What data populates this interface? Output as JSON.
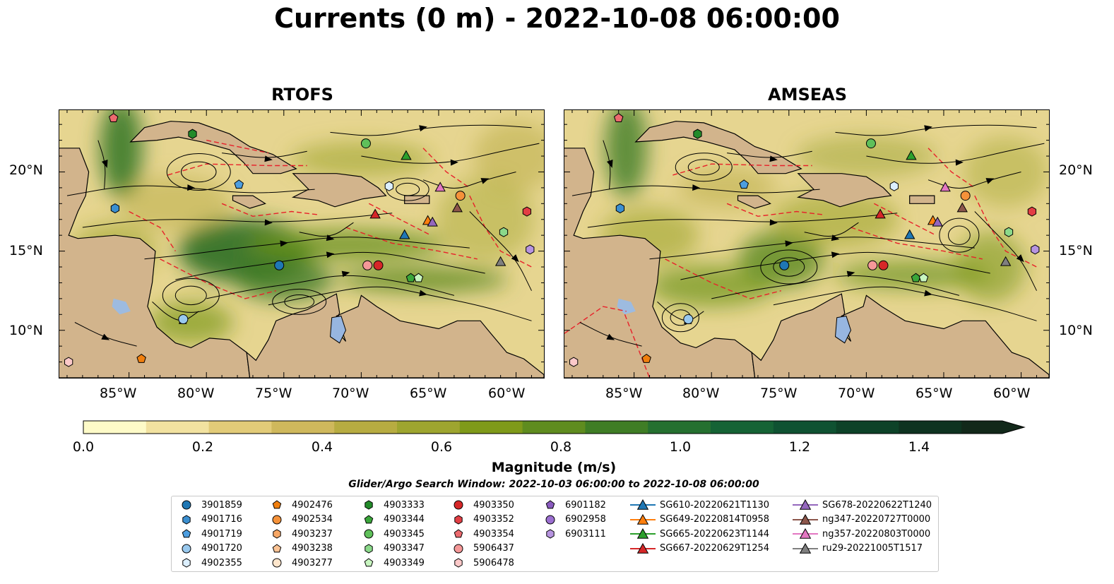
{
  "title": "Currents (0 m) - 2022-10-08 06:00:00",
  "panels": [
    {
      "title": "RTOFS"
    },
    {
      "title": "AMSEAS"
    }
  ],
  "lat_labels": [
    "20°N",
    "15°N",
    "10°N"
  ],
  "lon_labels": [
    "85°W",
    "80°W",
    "75°W",
    "70°W",
    "65°W",
    "60°W"
  ],
  "map_extent": {
    "lon_min": -89.5,
    "lon_max": -58.2,
    "lat_min": 7.0,
    "lat_max": 23.9
  },
  "colorbar": {
    "label": "Magnitude (m/s)",
    "ticks": [
      "0.0",
      "0.2",
      "0.4",
      "0.6",
      "0.8",
      "1.0",
      "1.2",
      "1.4"
    ],
    "range": [
      0.0,
      1.5
    ],
    "colors": [
      "#fefbc8",
      "#f2e2a0",
      "#e2cb78",
      "#cfb85c",
      "#b7ac41",
      "#9ea52f",
      "#7f9a1a",
      "#5f8c1f",
      "#3f7d25",
      "#257030",
      "#156335",
      "#0f5232",
      "#0d4228",
      "#0e3320",
      "#12281a"
    ]
  },
  "search_window": "Glider/Argo Search Window: 2022-10-03 06:00:00 to 2022-10-08 06:00:00",
  "legend": [
    {
      "label": "3901859",
      "marker": "circle",
      "color": "#1f77b4"
    },
    {
      "label": "4901716",
      "marker": "hexagon",
      "color": "#3b8fd0"
    },
    {
      "label": "4901719",
      "marker": "pentagon",
      "color": "#4d9ee0"
    },
    {
      "label": "4901720",
      "marker": "circle",
      "color": "#99c9ee"
    },
    {
      "label": "4902355",
      "marker": "hexagon",
      "color": "#dcefff"
    },
    {
      "label": "4902476",
      "marker": "pentagon",
      "color": "#f07f0e"
    },
    {
      "label": "4902534",
      "marker": "circle",
      "color": "#f5923a"
    },
    {
      "label": "4903237",
      "marker": "hexagon",
      "color": "#f7a765"
    },
    {
      "label": "4903238",
      "marker": "pentagon",
      "color": "#fbc394"
    },
    {
      "label": "4903277",
      "marker": "circle",
      "color": "#ffe6cc"
    },
    {
      "label": "4903333",
      "marker": "hexagon",
      "color": "#238b2a"
    },
    {
      "label": "4903344",
      "marker": "pentagon",
      "color": "#3aa63a"
    },
    {
      "label": "4903345",
      "marker": "circle",
      "color": "#5fc05a"
    },
    {
      "label": "4903347",
      "marker": "hexagon",
      "color": "#8bd98a"
    },
    {
      "label": "4903349",
      "marker": "pentagon",
      "color": "#c8f5c0"
    },
    {
      "label": "4903350",
      "marker": "circle",
      "color": "#d62728"
    },
    {
      "label": "4903352",
      "marker": "hexagon",
      "color": "#e23e44"
    },
    {
      "label": "4903354",
      "marker": "pentagon",
      "color": "#ec6a6e"
    },
    {
      "label": "5906437",
      "marker": "circle",
      "color": "#f59898"
    },
    {
      "label": "5906478",
      "marker": "hexagon",
      "color": "#fcc9c9"
    },
    {
      "label": "6901182",
      "marker": "pentagon",
      "color": "#8a5bbf"
    },
    {
      "label": "6902958",
      "marker": "circle",
      "color": "#9c6fd1"
    },
    {
      "label": "6903111",
      "marker": "hexagon",
      "color": "#b794e0"
    },
    {
      "label": "SG610-20220621T1130",
      "marker": "triangle",
      "color": "#1f77b4"
    },
    {
      "label": "SG649-20220814T0958",
      "marker": "triangle",
      "color": "#ff7f0e"
    },
    {
      "label": "SG665-20220623T1144",
      "marker": "triangle",
      "color": "#2ca02c"
    },
    {
      "label": "SG667-20220629T1254",
      "marker": "triangle",
      "color": "#d62728"
    },
    {
      "label": "SG678-20220622T1240",
      "marker": "triangle",
      "color": "#9467bd"
    },
    {
      "label": "ng347-20220727T0000",
      "marker": "triangle",
      "color": "#8c564b"
    },
    {
      "label": "ng357-20220803T0000",
      "marker": "triangle",
      "color": "#e377c2"
    },
    {
      "label": "ru29-20221005T1517",
      "marker": "triangle",
      "color": "#7f7f7f"
    }
  ],
  "map_markers": [
    {
      "label": "4903354",
      "lon": -86.0,
      "lat": 23.4
    },
    {
      "label": "4903333",
      "lon": -80.9,
      "lat": 22.4
    },
    {
      "label": "4903345",
      "lon": -69.7,
      "lat": 21.8
    },
    {
      "label": "SG665-20220623T1144",
      "lon": -67.1,
      "lat": 21.0
    },
    {
      "label": "4901719",
      "lon": -77.9,
      "lat": 19.2
    },
    {
      "label": "4902355",
      "lon": -68.2,
      "lat": 19.1
    },
    {
      "label": "ng357-20220803T0000",
      "lon": -64.9,
      "lat": 19.0
    },
    {
      "label": "4902534",
      "lon": -63.6,
      "lat": 18.5
    },
    {
      "label": "ng347-20220727T0000",
      "lon": -63.8,
      "lat": 17.7
    },
    {
      "label": "4901716",
      "lon": -85.9,
      "lat": 17.7
    },
    {
      "label": "SG667-20220629T1254",
      "lon": -69.1,
      "lat": 17.3
    },
    {
      "label": "4903352",
      "lon": -59.3,
      "lat": 17.5
    },
    {
      "label": "SG649-20220814T0958",
      "lon": -65.7,
      "lat": 16.9
    },
    {
      "label": "SG678-20220622T1240",
      "lon": -65.4,
      "lat": 16.8
    },
    {
      "label": "SG610-20220621T1130",
      "lon": -67.2,
      "lat": 16.0
    },
    {
      "label": "4903347",
      "lon": -60.8,
      "lat": 16.2
    },
    {
      "label": "6903111",
      "lon": -59.1,
      "lat": 15.1
    },
    {
      "label": "ru29-20221005T1517",
      "lon": -61.0,
      "lat": 14.3
    },
    {
      "label": "3901859",
      "lon": -75.3,
      "lat": 14.1
    },
    {
      "label": "5906437",
      "lon": -69.6,
      "lat": 14.1
    },
    {
      "label": "4903350",
      "lon": -68.9,
      "lat": 14.1
    },
    {
      "label": "4903344",
      "lon": -66.8,
      "lat": 13.3
    },
    {
      "label": "4903349",
      "lon": -66.3,
      "lat": 13.3
    },
    {
      "label": "4901720",
      "lon": -81.5,
      "lat": 10.7
    },
    {
      "label": "4902476",
      "lon": -84.2,
      "lat": 8.2
    },
    {
      "label": "5906478",
      "lon": -88.9,
      "lat": 8.0
    }
  ]
}
